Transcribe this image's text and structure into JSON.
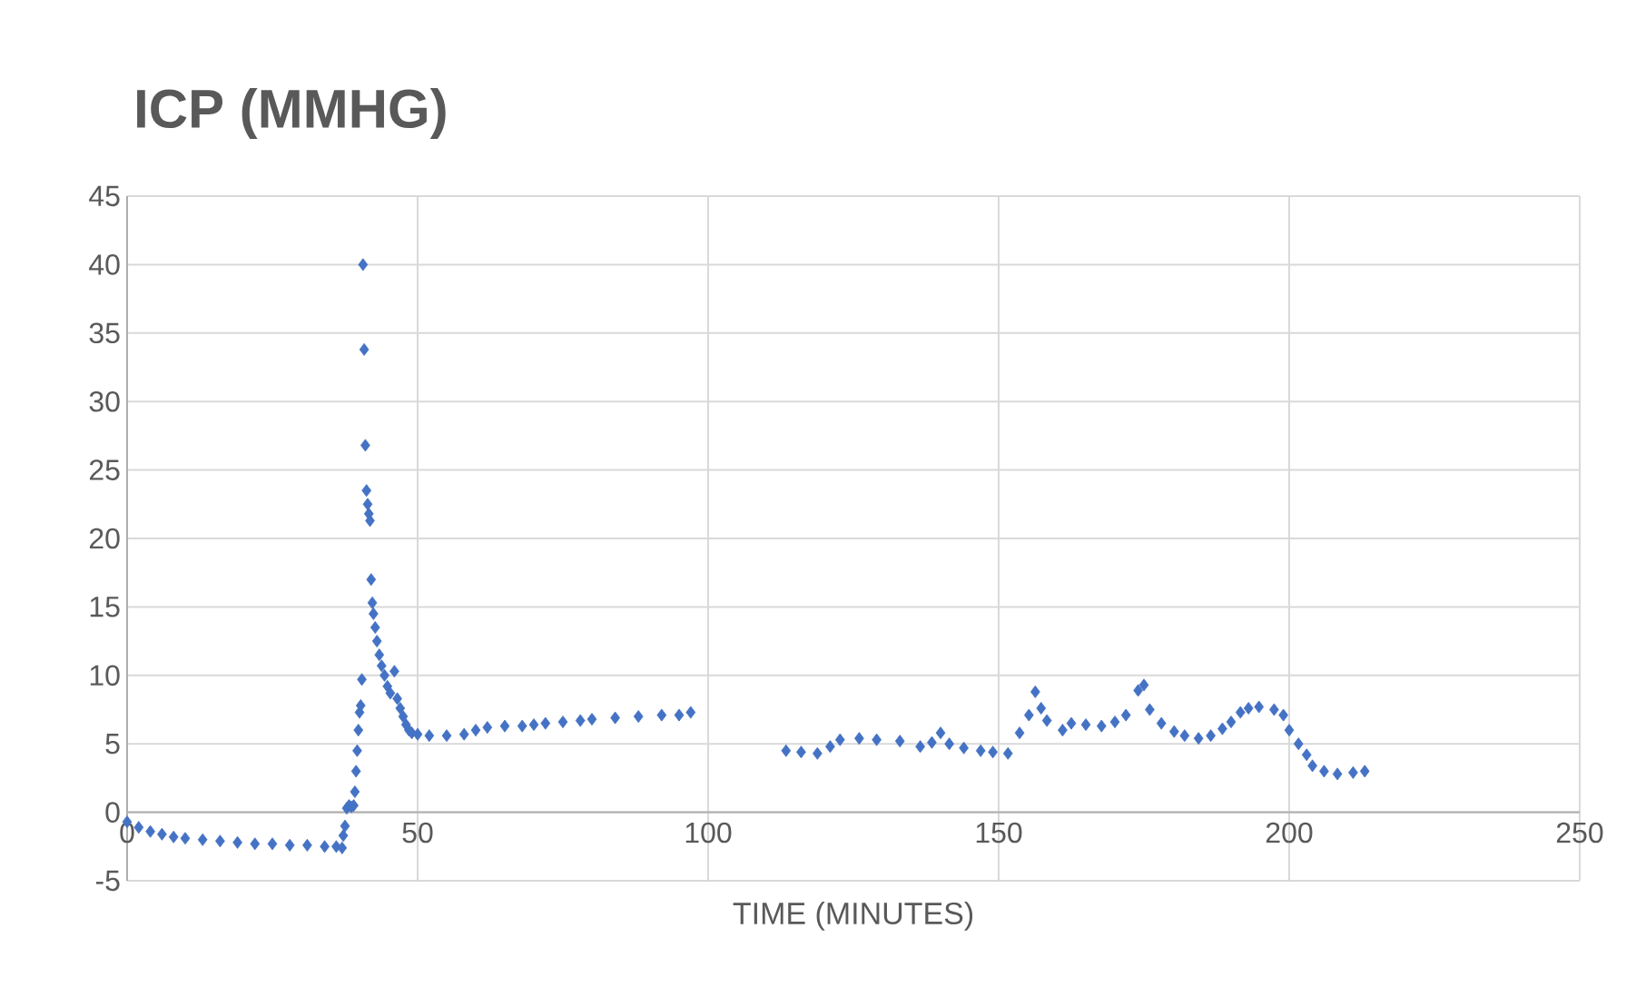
{
  "chart_data": {
    "type": "scatter",
    "title": "ICP (MMHG)",
    "xlabel": "TIME (MINUTES)",
    "x": [
      0,
      2,
      4,
      6,
      8,
      10,
      13,
      16,
      19,
      22,
      25,
      28,
      31,
      34,
      36,
      37,
      37.2,
      37.5,
      37.8,
      38.2,
      38.6,
      39,
      39.2,
      39.4,
      39.6,
      39.8,
      40,
      40.2,
      40.4,
      40.6,
      40.8,
      41,
      41.2,
      41.4,
      41.6,
      41.8,
      42,
      42.2,
      42.4,
      42.7,
      43,
      43.4,
      43.8,
      44.3,
      44.8,
      45.3,
      46,
      46.5,
      47,
      47.5,
      48,
      48.5,
      49,
      50,
      52,
      55,
      58,
      60,
      62,
      65,
      68,
      70,
      72,
      75,
      78,
      80,
      84,
      88,
      92,
      95,
      97,
      113.4,
      116,
      118.8,
      121,
      122.7,
      126,
      129,
      133,
      136.5,
      138.5,
      140,
      141.5,
      144,
      146.9,
      149,
      151.6,
      153.6,
      155.2,
      156.3,
      157.3,
      158.3,
      161,
      162.5,
      165,
      167.7,
      170,
      171.9,
      174,
      175,
      176,
      178,
      180.2,
      182,
      184.4,
      186.5,
      188.5,
      190,
      191.6,
      193,
      194.8,
      197.4,
      199,
      200,
      201.6,
      203,
      204,
      206,
      208.3,
      211,
      213
    ],
    "values": [
      -0.7,
      -1.1,
      -1.4,
      -1.6,
      -1.8,
      -1.9,
      -2.0,
      -2.1,
      -2.2,
      -2.3,
      -2.3,
      -2.4,
      -2.4,
      -2.5,
      -2.5,
      -2.6,
      -1.7,
      -1.0,
      0.3,
      0.5,
      0.4,
      0.5,
      1.5,
      3.0,
      4.5,
      6.0,
      7.3,
      7.8,
      9.7,
      40,
      33.8,
      26.8,
      23.5,
      22.5,
      21.8,
      21.3,
      17,
      15.3,
      14.5,
      13.5,
      12.5,
      11.5,
      10.7,
      10.0,
      9.2,
      8.7,
      10.3,
      8.3,
      7.6,
      7.0,
      6.4,
      6.0,
      5.8,
      5.7,
      5.6,
      5.6,
      5.7,
      6.0,
      6.2,
      6.3,
      6.3,
      6.4,
      6.5,
      6.6,
      6.7,
      6.8,
      6.9,
      7.0,
      7.1,
      7.1,
      7.3,
      4.5,
      4.4,
      4.3,
      4.8,
      5.3,
      5.4,
      5.3,
      5.2,
      4.8,
      5.1,
      5.8,
      5.0,
      4.7,
      4.5,
      4.4,
      4.3,
      5.8,
      7.1,
      8.8,
      7.6,
      6.7,
      6.0,
      6.5,
      6.4,
      6.3,
      6.6,
      7.1,
      8.9,
      9.3,
      7.5,
      6.5,
      5.9,
      5.6,
      5.4,
      5.6,
      6.1,
      6.6,
      7.3,
      7.6,
      7.7,
      7.5,
      7.1,
      6.0,
      5.0,
      4.2,
      3.4,
      3.0,
      2.8,
      2.9,
      3.0
    ],
    "color": "#4472c4",
    "marker": "diamond",
    "xlim": [
      0,
      250
    ],
    "xticks": [
      0,
      50,
      100,
      150,
      200,
      250
    ],
    "ylim": [
      -5,
      45
    ],
    "yticks": [
      -5,
      0,
      5,
      10,
      15,
      20,
      25,
      30,
      35,
      40,
      45
    ],
    "grid": true
  }
}
